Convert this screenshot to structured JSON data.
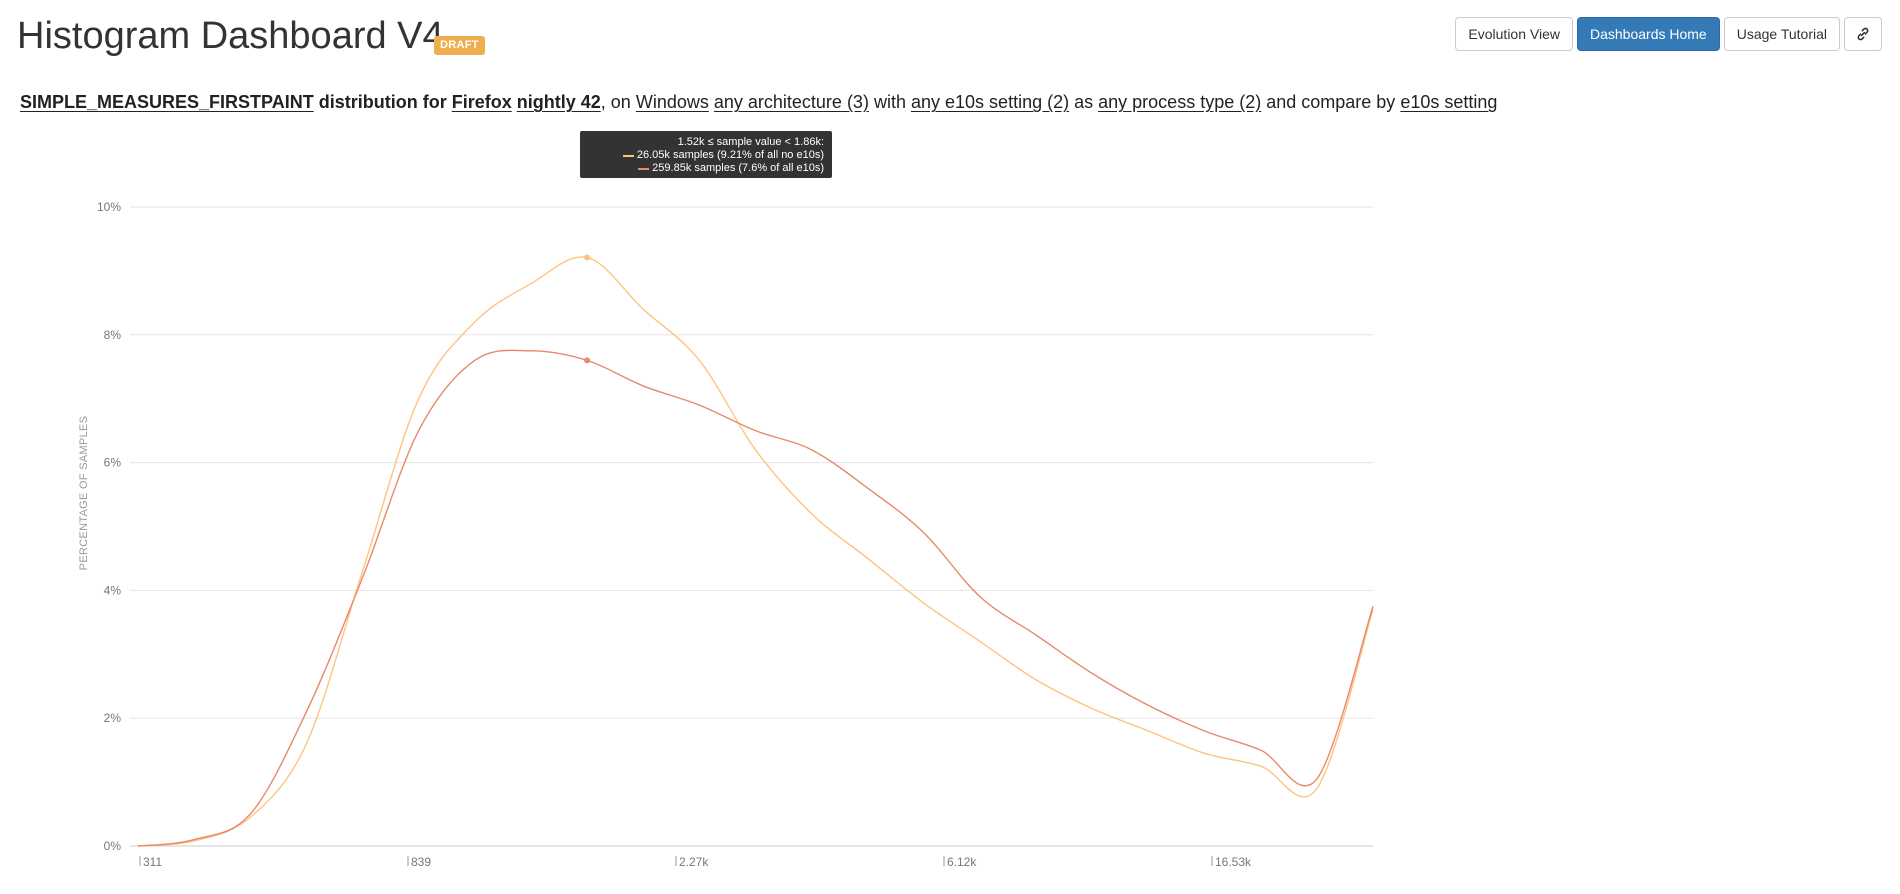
{
  "header": {
    "title": "Histogram Dashboard V4",
    "badge": "DRAFT"
  },
  "toolbar": {
    "evolution_view": "Evolution View",
    "dashboards_home": "Dashboards Home",
    "usage_tutorial": "Usage Tutorial",
    "link_icon": "link-icon"
  },
  "query": {
    "measure": "SIMPLE_MEASURES_FIRSTPAINT",
    "distribution_for": "distribution for",
    "product": "Firefox",
    "channel_version": "nightly 42",
    "comma_on": ", on",
    "os": "Windows",
    "architecture": "any architecture (3)",
    "with": "with",
    "e10s": "any e10s setting (2)",
    "as": "as",
    "process_type": "any process type (2)",
    "compare_by_label": "and compare by",
    "compare_by": "e10s setting"
  },
  "tooltip": {
    "header": "1.52k ≤ sample value < 1.86k:",
    "line1": "26.05k samples (9.21% of all no e10s)",
    "line2": "259.85k samples (7.6% of all e10s)"
  },
  "colors": {
    "accent_primary": "#337ab7",
    "badge": "#f0ad4e",
    "series_no_e10s": "#fdc47e",
    "series_e10s": "#e8896b"
  },
  "chart_data": {
    "type": "line",
    "title": "",
    "xlabel": "",
    "ylabel": "PERCENTAGE OF SAMPLES",
    "ylim": [
      0,
      10
    ],
    "grid": true,
    "y_ticks": [
      "0%",
      "2%",
      "4%",
      "6%",
      "8%",
      "10%"
    ],
    "x_tick_labels": [
      "311",
      "839",
      "2.27k",
      "6.12k",
      "16.53k"
    ],
    "highlight_bucket_index": 8,
    "series": [
      {
        "values": [
          0.0,
          0.08,
          0.45,
          1.6,
          4.3,
          7.0,
          8.2,
          8.8,
          9.21,
          8.4,
          7.6,
          6.2,
          5.2,
          4.5,
          3.8,
          3.2,
          2.6,
          2.15,
          1.8,
          1.45,
          1.25,
          0.9,
          3.7
        ]
      },
      {
        "values": [
          0.0,
          0.1,
          0.5,
          2.1,
          4.2,
          6.5,
          7.6,
          7.75,
          7.6,
          7.2,
          6.9,
          6.5,
          6.2,
          5.6,
          4.9,
          3.9,
          3.3,
          2.7,
          2.2,
          1.8,
          1.5,
          1.05,
          3.75
        ]
      }
    ]
  }
}
